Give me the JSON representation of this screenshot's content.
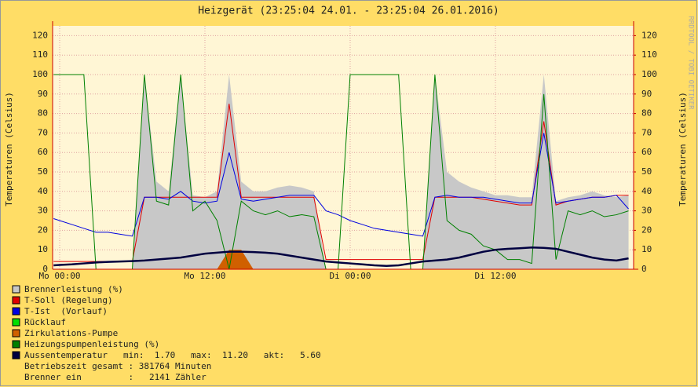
{
  "chart_data": {
    "type": "line",
    "title": "Heizgerät (23:25:04 24.01. - 23:25:04 26.01.2016)",
    "y_label": "Temperaturen (Celsius)",
    "y2_label": "Temperaturen (Celsius)",
    "watermark": "RRDTOOL / TOBI OETIKER",
    "x": [
      -0.5,
      0,
      1,
      2,
      3,
      4,
      5,
      6,
      7,
      8,
      9,
      10,
      11,
      12,
      13,
      14,
      15,
      16,
      17,
      18,
      19,
      20,
      21,
      22,
      23,
      24,
      25,
      26,
      27,
      28,
      29,
      30,
      31,
      32,
      33,
      34,
      35,
      36,
      37,
      38,
      39,
      40,
      41,
      42,
      43,
      44,
      45,
      46,
      47
    ],
    "xlim": [
      -0.583,
      47.417
    ],
    "xticks": [
      {
        "value": 0,
        "label": "Mo 00:00"
      },
      {
        "value": 12,
        "label": "Mo 12:00"
      },
      {
        "value": 24,
        "label": "Di 00:00"
      },
      {
        "value": 36,
        "label": "Di 12:00"
      }
    ],
    "ylim": [
      0,
      125
    ],
    "yticks": [
      0,
      10,
      20,
      30,
      40,
      50,
      60,
      70,
      80,
      90,
      100,
      110,
      120
    ],
    "y2lim": [
      0,
      125
    ],
    "y2ticks": [
      0,
      10,
      20,
      30,
      40,
      50,
      60,
      70,
      80,
      90,
      100,
      110,
      120
    ],
    "grid": true,
    "series": [
      {
        "name": "Brennerleistung (%)",
        "color": "#c8c8c8",
        "style": "area",
        "values": [
          0,
          0,
          0,
          0,
          0,
          0,
          0,
          0,
          100,
          45,
          40,
          100,
          38,
          37,
          40,
          100,
          45,
          40,
          40,
          42,
          43,
          42,
          40,
          0,
          0,
          0,
          0,
          0,
          0,
          0,
          0,
          0,
          100,
          50,
          45,
          42,
          40,
          38,
          38,
          37,
          37,
          100,
          35,
          37,
          38,
          40,
          38,
          37,
          38
        ]
      },
      {
        "name": "T-Soll (Regelung)",
        "color": "#e00000",
        "style": "line",
        "values": [
          4,
          4,
          4,
          4,
          4,
          4,
          4,
          4,
          37,
          37,
          37,
          37,
          37,
          37,
          37,
          85,
          37,
          37,
          37,
          37,
          37,
          37,
          37,
          5,
          5,
          5,
          5,
          5,
          5,
          5,
          5,
          5,
          37,
          37,
          37,
          37,
          36,
          35,
          34,
          33,
          33,
          76,
          33,
          35,
          36,
          37,
          37,
          38,
          38
        ]
      },
      {
        "name": "T-Ist  (Vorlauf)",
        "color": "#0000e0",
        "style": "line",
        "values": [
          26,
          25,
          23,
          21,
          19,
          19,
          18,
          17,
          37,
          37,
          36,
          40,
          35,
          34,
          35,
          60,
          36,
          35,
          36,
          37,
          38,
          38,
          38,
          30,
          28,
          25,
          23,
          21,
          20,
          19,
          18,
          17,
          37,
          38,
          37,
          37,
          37,
          36,
          35,
          34,
          34,
          70,
          34,
          35,
          36,
          37,
          37,
          38,
          31
        ]
      },
      {
        "name": "Rücklauf",
        "color": "#00e000",
        "style": "line",
        "values": [
          null,
          null,
          null,
          null,
          null,
          null,
          null,
          null,
          null,
          null,
          null,
          null,
          null,
          null,
          null,
          null,
          null,
          null,
          null,
          null,
          null,
          null,
          null,
          null,
          null,
          null,
          null,
          null,
          null,
          null,
          null,
          null,
          null,
          null,
          null,
          null,
          null,
          null,
          null,
          null,
          null,
          null,
          null,
          null,
          null,
          null,
          null,
          null,
          null
        ]
      },
      {
        "name": "Zirkulations-Pumpe",
        "color": "#d06000",
        "style": "area",
        "values": [
          0,
          0,
          0,
          0,
          0,
          0,
          0,
          0,
          0,
          0,
          0,
          0,
          0,
          0,
          0,
          10,
          10,
          0,
          0,
          0,
          0,
          0,
          0,
          0,
          0,
          0,
          0,
          0,
          0,
          0,
          0,
          0,
          0,
          0,
          0,
          0,
          0,
          0,
          0,
          0,
          0,
          0,
          0,
          0,
          0,
          0,
          0,
          0,
          0
        ]
      },
      {
        "name": "Heizungspumpenleistung (%)",
        "color": "#008000",
        "style": "line",
        "values": [
          100,
          100,
          100,
          100,
          0,
          0,
          0,
          0,
          100,
          35,
          33,
          100,
          30,
          35,
          25,
          0,
          35,
          30,
          28,
          30,
          27,
          28,
          27,
          0,
          0,
          100,
          100,
          100,
          100,
          100,
          0,
          0,
          100,
          25,
          20,
          18,
          12,
          10,
          5,
          5,
          3,
          90,
          5,
          30,
          28,
          30,
          27,
          28,
          30
        ]
      },
      {
        "name": "Aussentemperatur",
        "color": "#000040",
        "style": "thick",
        "values": [
          2,
          2.2,
          2.5,
          3,
          3.5,
          3.8,
          4,
          4.2,
          4.5,
          5,
          5.5,
          6,
          7,
          8,
          8.5,
          9,
          9,
          8.8,
          8.5,
          8,
          7,
          6,
          5,
          4,
          3.5,
          3,
          2.5,
          2,
          1.7,
          2,
          3,
          4,
          4.5,
          5,
          6,
          7.5,
          9,
          10,
          10.5,
          10.8,
          11.2,
          11,
          10.5,
          9,
          7.5,
          6,
          5,
          4.5,
          5.6
        ]
      }
    ],
    "aussen_stats": "min:  1.70   max:  11.20   akt:   5.60",
    "notes": [
      "Betriebszeit gesamt : 381764 Minuten",
      "Brenner ein         :   2141 Zähler"
    ]
  }
}
